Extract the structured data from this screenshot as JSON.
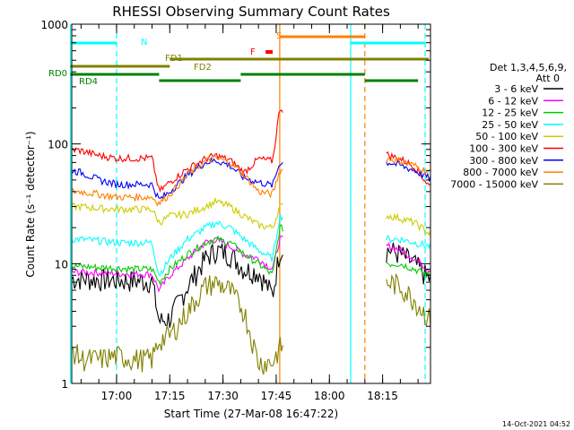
{
  "chart_data": {
    "type": "line",
    "title": "RHESSI Observing Summary Count Rates",
    "xlabel": "Start Time (27-Mar-08 16:47:22)",
    "ylabel": "Count Rate (s⁻¹ detector⁻¹)",
    "yscale": "log",
    "xlim": [
      "16:47:22",
      "18:28:30"
    ],
    "ylim": [
      1,
      1000
    ],
    "x_ticks": [
      "17:00",
      "17:15",
      "17:30",
      "17:45",
      "18:00",
      "18:15"
    ],
    "y_ticks": [
      {
        "value": 1,
        "label": "1"
      },
      {
        "value": 10,
        "label": "10"
      },
      {
        "value": 100,
        "label": "100"
      },
      {
        "value": 1000,
        "label": "1000"
      }
    ],
    "legend": {
      "header": [
        "Det 1,3,4,5,6,9,",
        "Att 0"
      ],
      "placement": "right"
    },
    "footer": "14-Oct-2021 04:52",
    "times": [
      "16:47",
      "16:50",
      "16:55",
      "17:00",
      "17:05",
      "17:10",
      "17:12",
      "17:15",
      "17:20",
      "17:25",
      "17:28",
      "17:32",
      "17:36",
      "17:40",
      "17:44",
      "17:46",
      "18:17",
      "18:20",
      "18:24",
      "18:28"
    ],
    "series": [
      {
        "name": "3 - 6 keV",
        "color": "#000000",
        "values": [
          7.5,
          7.5,
          7.4,
          7.3,
          7.2,
          7.2,
          3.3,
          3.5,
          6.5,
          11,
          13,
          12,
          9,
          8.5,
          5.5,
          13,
          13,
          12,
          10,
          7.5
        ]
      },
      {
        "name": "6 - 12 keV",
        "color": "#ff00ff",
        "values": [
          8.5,
          8.5,
          8.4,
          8.3,
          8.2,
          8.2,
          6,
          8,
          11,
          15,
          16,
          14,
          12,
          11,
          9,
          16,
          14,
          13,
          11,
          9
        ]
      },
      {
        "name": "12 - 25 keV",
        "color": "#00cc00",
        "values": [
          9.5,
          9.5,
          9.3,
          9.2,
          9,
          9,
          7,
          9,
          12,
          15,
          16,
          15,
          12,
          10,
          8,
          20,
          10,
          10,
          9,
          8
        ]
      },
      {
        "name": "25 - 50 keV",
        "color": "#00ffff",
        "values": [
          16,
          16,
          15.5,
          15,
          15,
          15,
          8,
          11,
          16,
          20,
          22,
          20,
          16,
          13,
          11,
          25,
          16,
          16,
          15,
          14
        ]
      },
      {
        "name": "50 - 100 keV",
        "color": "#cccc00",
        "values": [
          30,
          30,
          29,
          28.5,
          28.5,
          28.5,
          22,
          25,
          26,
          30,
          33,
          30,
          25,
          21,
          20,
          30,
          25,
          24,
          22,
          18
        ]
      },
      {
        "name": "100 - 300 keV",
        "color": "#ff0000",
        "values": [
          90,
          88,
          80,
          76,
          76,
          76,
          40,
          48,
          62,
          75,
          80,
          73,
          58,
          75,
          72,
          200,
          80,
          75,
          65,
          45
        ]
      },
      {
        "name": "300 - 800 keV",
        "color": "#0000ff",
        "values": [
          60,
          58,
          50,
          46,
          46,
          46,
          34,
          40,
          55,
          70,
          73,
          66,
          52,
          48,
          45,
          70,
          70,
          66,
          60,
          52
        ]
      },
      {
        "name": "800 - 7000 keV",
        "color": "#ff8000",
        "values": [
          40,
          40,
          38,
          36,
          36,
          36,
          32,
          38,
          55,
          72,
          76,
          70,
          55,
          40,
          38,
          60,
          75,
          72,
          66,
          58
        ]
      },
      {
        "name": "7000 - 15000 keV",
        "color": "#808000",
        "values": [
          2,
          1.6,
          1.6,
          1.7,
          1.6,
          1.6,
          2.3,
          2.5,
          4,
          6.5,
          7,
          6,
          4,
          1.5,
          1.5,
          2,
          7,
          6.5,
          5,
          3.5
        ]
      }
    ],
    "attenuator_states": [
      {
        "label": "A0",
        "start": "16:47",
        "end": "18:28",
        "color": "#808000"
      }
    ],
    "annotations": [
      {
        "label": "N",
        "color": "#00ffff"
      },
      {
        "label": "S",
        "color": "#ff8000"
      },
      {
        "label": "F",
        "color": "#ff0000"
      },
      {
        "label": "FD1",
        "color": "#808000"
      },
      {
        "label": "FD2",
        "color": "#808000"
      },
      {
        "label": "RD0",
        "color": "#008000"
      },
      {
        "label": "RD4",
        "color": "#008000"
      }
    ],
    "vertical_markers": [
      {
        "time": "16:47",
        "color": "#00ffff",
        "style": "solid"
      },
      {
        "time": "17:00",
        "color": "#00ffff",
        "style": "dashed"
      },
      {
        "time": "17:46",
        "color": "#ff8000",
        "style": "solid"
      },
      {
        "time": "18:06",
        "color": "#00ffff",
        "style": "solid"
      },
      {
        "time": "18:10",
        "color": "#ff8000",
        "style": "dashed"
      },
      {
        "time": "18:27",
        "color": "#00ffff",
        "style": "dashed"
      }
    ],
    "state_bars": [
      {
        "name": "night",
        "color": "#00ffff",
        "segments": [
          [
            "16:47",
            "17:00"
          ],
          [
            "18:06",
            "18:27"
          ]
        ]
      },
      {
        "name": "saa",
        "color": "#ff8000",
        "segments": [
          [
            "17:46",
            "18:10"
          ]
        ]
      },
      {
        "name": "flare",
        "color": "#ff0000",
        "segments": [
          [
            "17:42",
            "17:44"
          ]
        ]
      },
      {
        "name": "fd1",
        "color": "#808000",
        "segments": [
          [
            "17:15",
            "18:28"
          ]
        ]
      },
      {
        "name": "fd2",
        "color": "#808000",
        "segments": [
          [
            "16:47",
            "17:15"
          ]
        ]
      },
      {
        "name": "rd0",
        "color": "#008000",
        "segments": [
          [
            "16:47",
            "17:12"
          ],
          [
            "17:12",
            "17:35"
          ],
          [
            "17:35",
            "18:10"
          ],
          [
            "18:10",
            "18:25"
          ]
        ]
      }
    ]
  }
}
